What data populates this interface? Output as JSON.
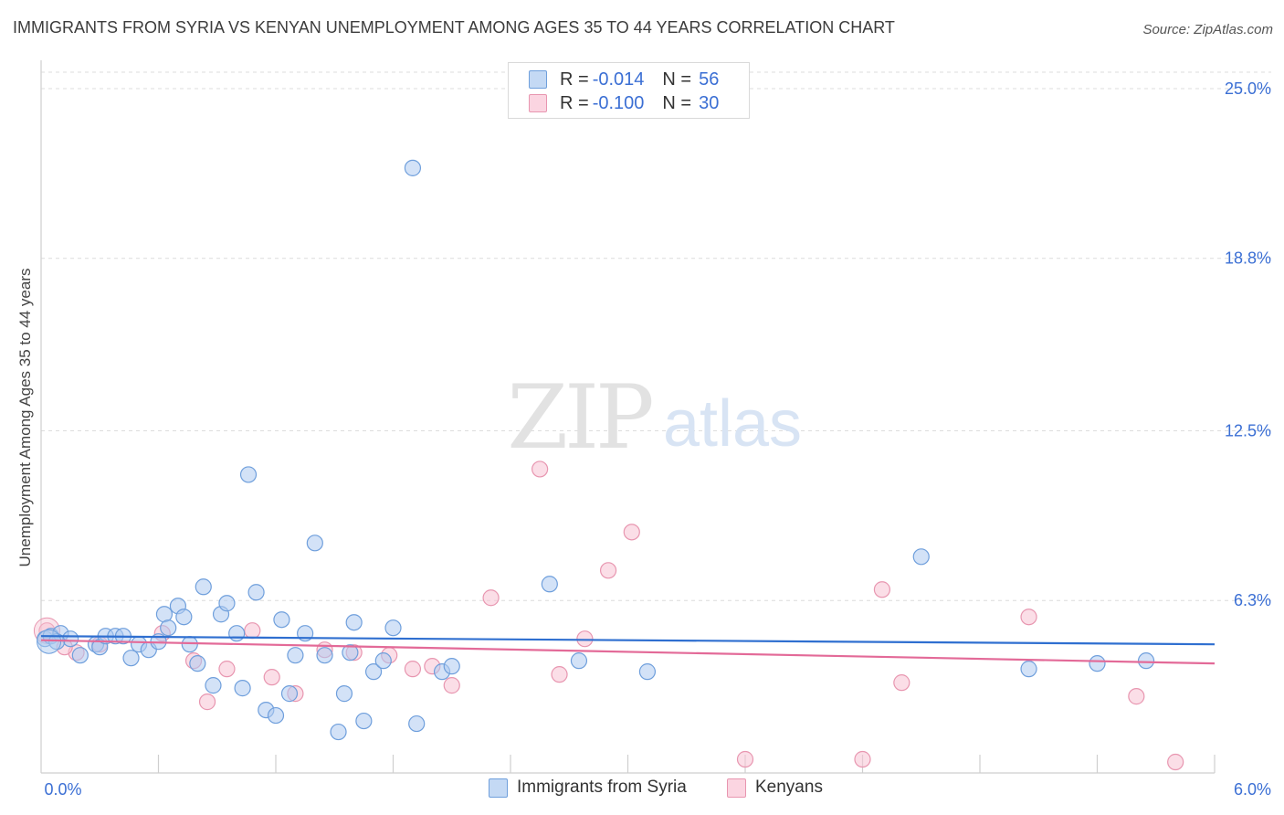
{
  "header": {
    "title": "IMMIGRANTS FROM SYRIA VS KENYAN UNEMPLOYMENT AMONG AGES 35 TO 44 YEARS CORRELATION CHART",
    "source": "Source: ZipAtlas.com"
  },
  "watermark": {
    "zip": "ZIP",
    "atlas": "atlas"
  },
  "legend": {
    "rows": [
      {
        "r_label": "R =",
        "r_value": "-0.014",
        "n_label": "N =",
        "n_value": "56"
      },
      {
        "r_label": "R =",
        "r_value": "-0.100",
        "n_label": "N =",
        "n_value": "30"
      }
    ]
  },
  "bottom_legend": {
    "series1": "Immigrants from Syria",
    "series2": "Kenyans"
  },
  "colors": {
    "blue_fill": "#aecbf0",
    "blue_stroke": "#6f9fdc",
    "blue_line": "#2f6fd0",
    "pink_fill": "#f7c3d3",
    "pink_stroke": "#e896b0",
    "pink_line": "#e36a98",
    "tick_text": "#3b6fd4",
    "grid": "#dcdcdc"
  },
  "chart_data": {
    "type": "scatter",
    "title": "IMMIGRANTS FROM SYRIA VS KENYAN UNEMPLOYMENT AMONG AGES 35 TO 44 YEARS CORRELATION CHART",
    "xlabel": "",
    "ylabel": "Unemployment Among Ages 35 to 44 years",
    "xlim": [
      0,
      6.0
    ],
    "ylim": [
      0,
      25.6
    ],
    "x_tick_labels": [
      "0.0%",
      "6.0%"
    ],
    "y_ticks": [
      6.3,
      12.5,
      18.8,
      25.0
    ],
    "y_tick_labels": [
      "6.3%",
      "12.5%",
      "18.8%",
      "25.0%"
    ],
    "grid": true,
    "legend_position": "top-center",
    "series": [
      {
        "name": "Immigrants from Syria",
        "R": -0.014,
        "N": 56,
        "trend": {
          "x": [
            0,
            6.0
          ],
          "y": [
            5.0,
            4.7
          ]
        },
        "points": [
          [
            0.02,
            4.9
          ],
          [
            0.05,
            5.0
          ],
          [
            0.1,
            5.1
          ],
          [
            0.15,
            4.9
          ],
          [
            0.2,
            4.3
          ],
          [
            0.28,
            4.7
          ],
          [
            0.3,
            4.6
          ],
          [
            0.33,
            5.0
          ],
          [
            0.38,
            5.0
          ],
          [
            0.42,
            5.0
          ],
          [
            0.46,
            4.2
          ],
          [
            0.5,
            4.7
          ],
          [
            0.55,
            4.5
          ],
          [
            0.6,
            4.8
          ],
          [
            0.63,
            5.8
          ],
          [
            0.65,
            5.3
          ],
          [
            0.7,
            6.1
          ],
          [
            0.73,
            5.7
          ],
          [
            0.76,
            4.7
          ],
          [
            0.8,
            4.0
          ],
          [
            0.83,
            6.8
          ],
          [
            0.88,
            3.2
          ],
          [
            0.92,
            5.8
          ],
          [
            0.95,
            6.2
          ],
          [
            1.0,
            5.1
          ],
          [
            1.03,
            3.1
          ],
          [
            1.06,
            10.9
          ],
          [
            1.1,
            6.6
          ],
          [
            1.15,
            2.3
          ],
          [
            1.2,
            2.1
          ],
          [
            1.23,
            5.6
          ],
          [
            1.27,
            2.9
          ],
          [
            1.3,
            4.3
          ],
          [
            1.35,
            5.1
          ],
          [
            1.4,
            8.4
          ],
          [
            1.45,
            4.3
          ],
          [
            1.52,
            1.5
          ],
          [
            1.55,
            2.9
          ],
          [
            1.6,
            5.5
          ],
          [
            1.65,
            1.9
          ],
          [
            1.7,
            3.7
          ],
          [
            1.75,
            4.1
          ],
          [
            1.8,
            5.3
          ],
          [
            1.9,
            22.1
          ],
          [
            1.92,
            1.8
          ],
          [
            2.05,
            3.7
          ],
          [
            2.1,
            3.9
          ],
          [
            2.6,
            6.9
          ],
          [
            2.75,
            4.1
          ],
          [
            3.1,
            3.7
          ],
          [
            4.5,
            7.9
          ],
          [
            5.05,
            3.8
          ],
          [
            5.4,
            4.0
          ],
          [
            5.65,
            4.1
          ],
          [
            0.08,
            4.8
          ],
          [
            1.58,
            4.4
          ]
        ]
      },
      {
        "name": "Kenyans",
        "R": -0.1,
        "N": 30,
        "trend": {
          "x": [
            0,
            6.0
          ],
          "y": [
            4.85,
            4.0
          ]
        },
        "points": [
          [
            0.03,
            5.2
          ],
          [
            0.18,
            4.4
          ],
          [
            0.3,
            4.7
          ],
          [
            0.62,
            5.1
          ],
          [
            0.78,
            4.1
          ],
          [
            0.85,
            2.6
          ],
          [
            0.95,
            3.8
          ],
          [
            1.08,
            5.2
          ],
          [
            1.18,
            3.5
          ],
          [
            1.3,
            2.9
          ],
          [
            1.45,
            4.5
          ],
          [
            1.6,
            4.4
          ],
          [
            1.78,
            4.3
          ],
          [
            1.9,
            3.8
          ],
          [
            2.0,
            3.9
          ],
          [
            2.1,
            3.2
          ],
          [
            2.3,
            6.4
          ],
          [
            2.55,
            11.1
          ],
          [
            2.65,
            3.6
          ],
          [
            2.78,
            4.9
          ],
          [
            2.9,
            7.4
          ],
          [
            3.02,
            8.8
          ],
          [
            3.6,
            0.5
          ],
          [
            4.2,
            0.5
          ],
          [
            4.3,
            6.7
          ],
          [
            4.4,
            3.3
          ],
          [
            5.05,
            5.7
          ],
          [
            5.6,
            2.8
          ],
          [
            5.8,
            0.4
          ],
          [
            0.12,
            4.6
          ]
        ]
      }
    ]
  }
}
